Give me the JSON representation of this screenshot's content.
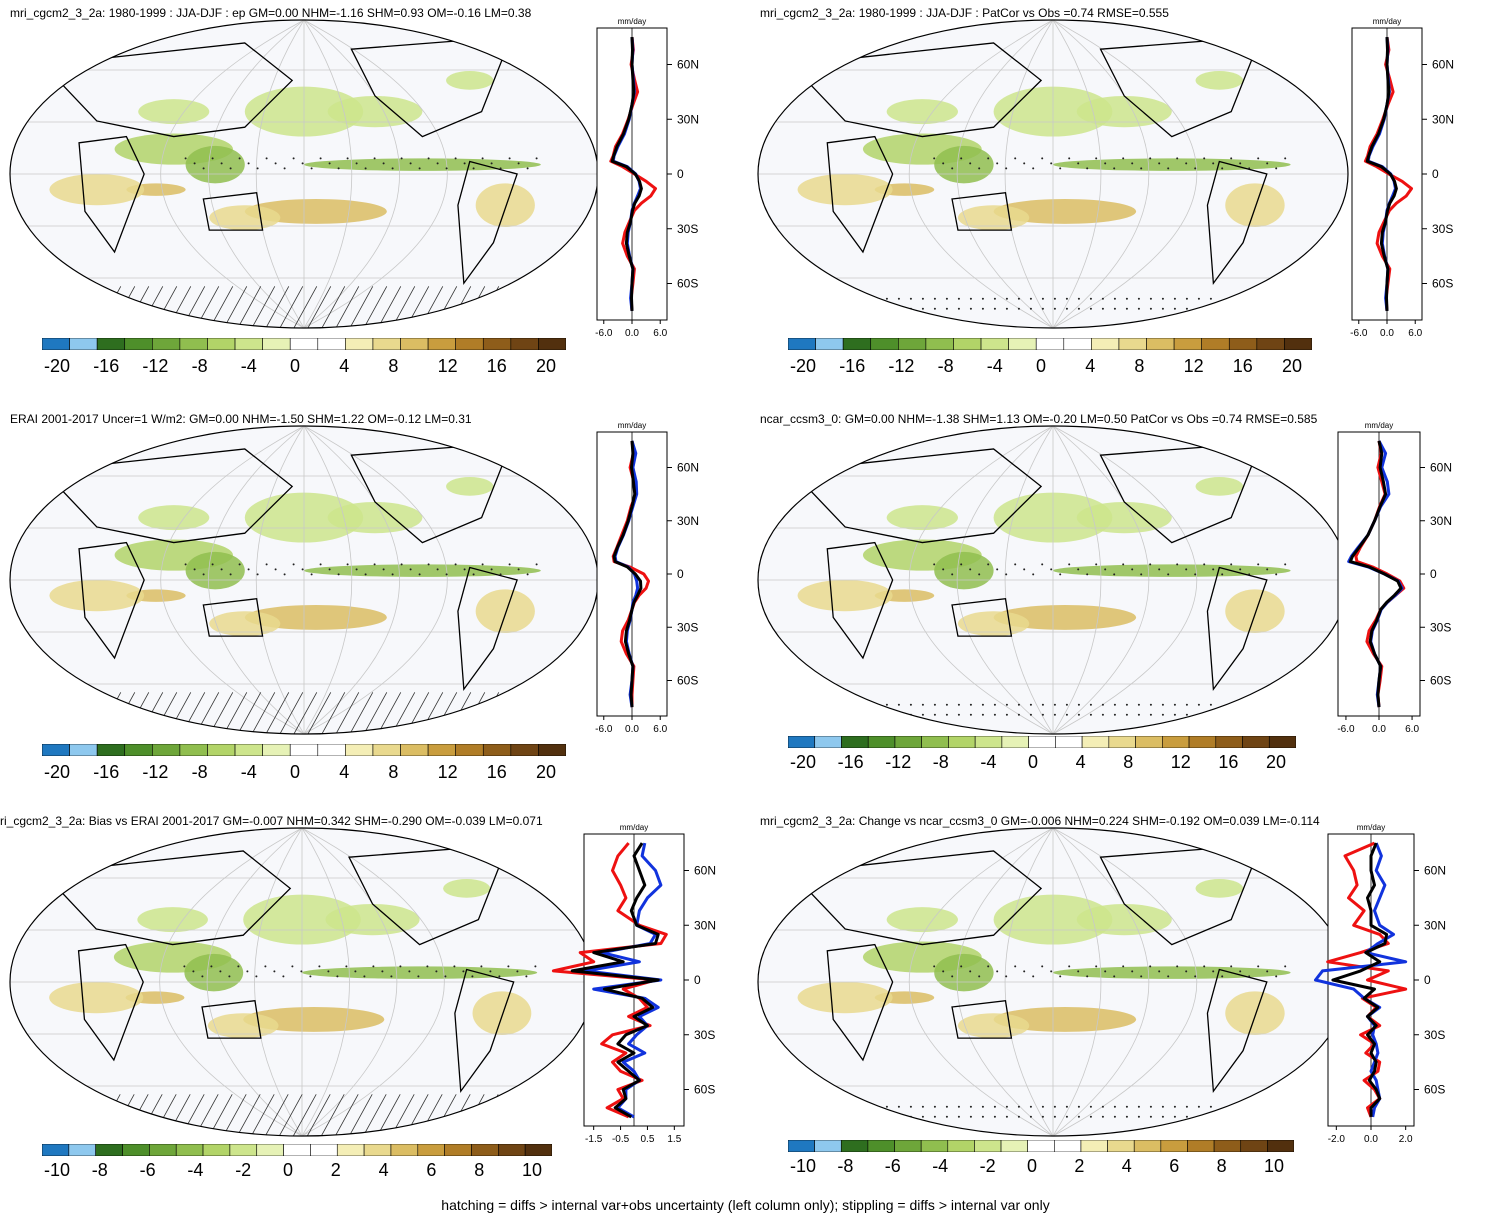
{
  "footer": "hatching = diffs > internal var+obs uncertainty (left column only); stippling = diffs > internal var only",
  "colors": {
    "scale_main": [
      "#1f78c0",
      "#8ec8ee",
      "#2e6e1f",
      "#4e8f2a",
      "#6ea63a",
      "#90be4f",
      "#b2d468",
      "#cde58c",
      "#e6f2b6",
      "#ffffff",
      "#ffffff",
      "#f4eeb6",
      "#e9d98e",
      "#dbbd63",
      "#c99d3e",
      "#b07d27",
      "#8e5d1a",
      "#6f4414",
      "#52300e"
    ],
    "red": "#ee1111",
    "blue": "#1133dd",
    "black": "#000000"
  },
  "profile_axis": {
    "unit_label": "mm/day",
    "lat_ticks": [
      "60N",
      "30N",
      "0",
      "30S",
      "60S"
    ]
  },
  "panels": [
    {
      "id": "mri-mean",
      "title": "mri_cgcm2_3_2a: 1980-1999 : JJA-DJF : ep GM=0.00 NHM=-1.16 SHM=0.93 OM=-0.16 LM=0.38",
      "colorbar_labels": [
        "-20",
        "-16",
        "-12",
        "-8",
        "-4",
        "0",
        "4",
        "8",
        "12",
        "16",
        "20"
      ],
      "xticks": [
        "-6.0",
        "0.0",
        "6.0"
      ],
      "antarctic_pattern": "hatch"
    },
    {
      "id": "mri-patcor",
      "title": "mri_cgcm2_3_2a: 1980-1999 : JJA-DJF : PatCor vs Obs =0.74 RMSE=0.555",
      "colorbar_labels": [
        "-20",
        "-16",
        "-12",
        "-8",
        "-4",
        "0",
        "4",
        "8",
        "12",
        "16",
        "20"
      ],
      "xticks": [
        "-6.0",
        "0.0",
        "6.0"
      ],
      "antarctic_pattern": "stipple"
    },
    {
      "id": "erai",
      "title": "ERAI 2001-2017 Uncer=1 W/m2: GM=0.00 NHM=-1.50 SHM=1.22 OM=-0.12 LM=0.31",
      "colorbar_labels": [
        "-20",
        "-16",
        "-12",
        "-8",
        "-4",
        "0",
        "4",
        "8",
        "12",
        "16",
        "20"
      ],
      "xticks": [
        "-6.0",
        "0.0",
        "6.0"
      ],
      "antarctic_pattern": "hatch"
    },
    {
      "id": "ncar",
      "title": "ncar_ccsm3_0: GM=0.00 NHM=-1.38 SHM=1.13 OM=-0.20 LM=0.50 PatCor vs Obs =0.74 RMSE=0.585",
      "colorbar_labels": [
        "-20",
        "-16",
        "-12",
        "-8",
        "-4",
        "0",
        "4",
        "8",
        "12",
        "16",
        "20"
      ],
      "xticks": [
        "-6.0",
        "0.0",
        "6.0"
      ],
      "antarctic_pattern": "stipple"
    },
    {
      "id": "bias",
      "title": "ri_cgcm2_3_2a: Bias vs ERAI 2001-2017 GM=-0.007 NHM=0.342 SHM=-0.290 OM=-0.039 LM=0.071",
      "colorbar_labels": [
        "-10",
        "-8",
        "-6",
        "-4",
        "-2",
        "0",
        "2",
        "4",
        "6",
        "8",
        "10"
      ],
      "xticks": [
        "-1.5",
        "-0.5",
        "0.5",
        "1.5"
      ],
      "antarctic_pattern": "hatch"
    },
    {
      "id": "change",
      "title": "mri_cgcm2_3_2a: Change vs ncar_ccsm3_0 GM=-0.006 NHM=0.224 SHM=-0.192 OM=0.039 LM=-0.114",
      "colorbar_labels": [
        "-10",
        "-8",
        "-6",
        "-4",
        "-2",
        "0",
        "2",
        "4",
        "6",
        "8",
        "10"
      ],
      "xticks": [
        "-2.0",
        "0.0",
        "2.0"
      ],
      "antarctic_pattern": "stipple"
    }
  ],
  "chart_data": [
    {
      "type": "line",
      "panel": "mri-mean",
      "y_lat": [
        75,
        68,
        60,
        52,
        45,
        38,
        30,
        22,
        15,
        10,
        7,
        4,
        0,
        -4,
        -8,
        -12,
        -16,
        -20,
        -26,
        -32,
        -38,
        -45,
        -52,
        -60,
        -68,
        -75
      ],
      "series": [
        {
          "color": "red",
          "values": [
            0,
            0.3,
            -0.2,
            0.5,
            1.2,
            0.2,
            -0.8,
            -2.0,
            -3.5,
            -4.0,
            -4.5,
            -2.0,
            0.5,
            3.0,
            5.0,
            4.0,
            2.0,
            0.5,
            -0.5,
            -1.5,
            -2.0,
            -1.0,
            0.5,
            0.2,
            -0.2,
            0
          ]
        },
        {
          "color": "blue",
          "values": [
            0,
            0.2,
            0,
            0.3,
            0.5,
            0,
            -0.6,
            -1.6,
            -3.0,
            -3.8,
            -4.0,
            -1.0,
            0.8,
            1.5,
            1.8,
            1.2,
            0.5,
            0,
            -0.3,
            -0.8,
            -1.0,
            -0.5,
            0.2,
            0,
            -0.3,
            0
          ]
        },
        {
          "color": "black",
          "values": [
            0,
            0.1,
            0,
            0.2,
            0.4,
            0,
            -0.7,
            -1.8,
            -3.2,
            -3.9,
            -4.2,
            -1.2,
            0.7,
            1.6,
            2.0,
            1.5,
            0.6,
            0.1,
            -0.3,
            -1.0,
            -1.2,
            -0.6,
            0.2,
            0,
            -0.1,
            0
          ]
        }
      ]
    },
    {
      "type": "line",
      "panel": "mri-patcor",
      "y_lat": [
        75,
        68,
        60,
        52,
        45,
        38,
        30,
        22,
        15,
        10,
        7,
        4,
        0,
        -4,
        -8,
        -12,
        -16,
        -20,
        -26,
        -32,
        -38,
        -45,
        -52,
        -60,
        -68,
        -75
      ],
      "series": [
        {
          "color": "red",
          "values": [
            0,
            0.4,
            -0.3,
            0.6,
            1.3,
            0.2,
            -0.9,
            -2.1,
            -3.6,
            -4.1,
            -4.6,
            -2.2,
            0.4,
            3.2,
            5.2,
            4.1,
            2.0,
            0.5,
            -0.6,
            -1.7,
            -2.1,
            -1.0,
            0.6,
            0.2,
            -0.2,
            0
          ]
        },
        {
          "color": "blue",
          "values": [
            0,
            0.2,
            0,
            0.3,
            0.5,
            0,
            -0.6,
            -1.6,
            -3.0,
            -3.8,
            -4.0,
            -1.0,
            0.8,
            1.5,
            1.8,
            1.2,
            0.5,
            0,
            -0.3,
            -0.8,
            -1.0,
            -0.5,
            0.2,
            0,
            -0.3,
            0
          ]
        },
        {
          "color": "black",
          "values": [
            0,
            0.1,
            0,
            0.2,
            0.4,
            0,
            -0.7,
            -1.8,
            -3.2,
            -3.9,
            -4.2,
            -1.2,
            0.7,
            1.6,
            2.0,
            1.5,
            0.6,
            0.1,
            -0.3,
            -1.0,
            -1.2,
            -0.6,
            0.2,
            0,
            -0.1,
            0
          ]
        }
      ]
    },
    {
      "type": "line",
      "panel": "erai",
      "y_lat": [
        75,
        68,
        60,
        52,
        45,
        38,
        30,
        22,
        15,
        10,
        7,
        4,
        0,
        -4,
        -8,
        -12,
        -16,
        -20,
        -26,
        -32,
        -38,
        -45,
        -52,
        -60,
        -68,
        -75
      ],
      "series": [
        {
          "color": "red",
          "values": [
            0,
            0.3,
            -0.4,
            0.4,
            0.8,
            -0.2,
            -1.0,
            -2.2,
            -3.2,
            -4.0,
            -3.8,
            -0.5,
            2.5,
            3.5,
            3.0,
            1.5,
            0.5,
            0,
            -0.8,
            -2.0,
            -2.3,
            -1.2,
            0.4,
            0.2,
            0,
            0
          ]
        },
        {
          "color": "blue",
          "values": [
            0,
            0.8,
            0.2,
            0.9,
            1.0,
            0.2,
            -0.7,
            -1.8,
            -3.0,
            -3.6,
            -3.4,
            -0.8,
            0.5,
            1.0,
            1.2,
            0.8,
            0.2,
            0,
            -0.4,
            -1.0,
            -1.2,
            -0.6,
            0.2,
            0,
            -0.4,
            0
          ]
        },
        {
          "color": "black",
          "values": [
            0,
            0.2,
            -0.1,
            0.3,
            0.6,
            0,
            -0.8,
            -1.9,
            -3.1,
            -3.8,
            -3.6,
            -1.0,
            0.7,
            1.8,
            1.9,
            1.2,
            0.4,
            0,
            -0.5,
            -1.2,
            -1.4,
            -0.7,
            0.2,
            0,
            -0.2,
            0
          ]
        }
      ]
    },
    {
      "type": "line",
      "panel": "ncar",
      "y_lat": [
        75,
        68,
        60,
        52,
        45,
        38,
        30,
        22,
        15,
        10,
        7,
        4,
        0,
        -4,
        -8,
        -12,
        -16,
        -20,
        -26,
        -32,
        -38,
        -45,
        -52,
        -60,
        -68,
        -75
      ],
      "series": [
        {
          "color": "red",
          "values": [
            0,
            0.4,
            -0.2,
            0.5,
            1.1,
            0.1,
            -0.8,
            -2.0,
            -3.4,
            -4.2,
            -4.0,
            -1.2,
            1.5,
            3.8,
            4.5,
            3.0,
            1.5,
            0.3,
            -0.6,
            -1.8,
            -2.2,
            -1.0,
            0.5,
            0.2,
            -0.2,
            0
          ]
        },
        {
          "color": "blue",
          "values": [
            0,
            1.2,
            0.5,
            1.5,
            1.8,
            0.3,
            -0.8,
            -2.0,
            -3.8,
            -5.0,
            -5.5,
            -2.0,
            1.0,
            3.5,
            4.2,
            3.0,
            1.5,
            0.4,
            -0.3,
            -1.2,
            -1.5,
            -0.8,
            0.3,
            0,
            -0.3,
            0
          ]
        },
        {
          "color": "black",
          "values": [
            0,
            0.5,
            0.2,
            0.8,
            1.2,
            0.2,
            -0.8,
            -2.0,
            -3.6,
            -4.8,
            -5.2,
            -1.8,
            1.0,
            3.4,
            4.0,
            2.8,
            1.4,
            0.3,
            -0.4,
            -1.3,
            -1.6,
            -0.8,
            0.3,
            0,
            -0.2,
            0
          ]
        }
      ]
    },
    {
      "type": "line",
      "panel": "bias",
      "y_lat": [
        75,
        68,
        60,
        52,
        45,
        38,
        30,
        25,
        20,
        15,
        10,
        5,
        0,
        -5,
        -10,
        -15,
        -20,
        -25,
        -30,
        -35,
        -40,
        -45,
        -50,
        -55,
        -60,
        -65,
        -70,
        -75
      ],
      "series": [
        {
          "color": "red",
          "values": [
            -0.2,
            -0.6,
            -0.8,
            -0.5,
            -0.3,
            -0.6,
            0.2,
            1.2,
            1.0,
            -2.0,
            -1.5,
            -3.0,
            0.8,
            -0.4,
            0.2,
            0.5,
            -0.2,
            0.6,
            -0.8,
            -1.2,
            -0.3,
            -0.8,
            -0.5,
            0.3,
            -0.6,
            -0.4,
            -1.0,
            -0.2
          ]
        },
        {
          "color": "blue",
          "values": [
            0.4,
            0.3,
            0.8,
            1.0,
            0.5,
            0.2,
            0.1,
            0.8,
            0.6,
            -1.2,
            0.2,
            -1.8,
            1.0,
            -1.5,
            0.4,
            0.9,
            0.2,
            0.5,
            0.1,
            -0.2,
            0.4,
            -0.4,
            0,
            0.2,
            -0.3,
            -0.3,
            -0.6,
            0
          ]
        },
        {
          "color": "black",
          "values": [
            0.3,
            0,
            0.2,
            0.4,
            0.1,
            -0.1,
            0.1,
            0.9,
            0.8,
            -1.5,
            -0.4,
            -2.3,
            0.9,
            -1.1,
            0.3,
            0.7,
            0,
            0.5,
            -0.3,
            -0.6,
            0,
            -0.6,
            -0.2,
            0.2,
            -0.4,
            -0.3,
            -0.7,
            -0.1
          ]
        }
      ]
    },
    {
      "type": "line",
      "panel": "change",
      "y_lat": [
        75,
        68,
        60,
        52,
        45,
        38,
        30,
        25,
        20,
        15,
        10,
        5,
        0,
        -5,
        -10,
        -15,
        -20,
        -25,
        -30,
        -35,
        -40,
        -45,
        -50,
        -55,
        -60,
        -65,
        -70,
        -75
      ],
      "series": [
        {
          "color": "red",
          "values": [
            0.2,
            -1.5,
            -1.0,
            -0.8,
            -1.3,
            -0.4,
            -1.0,
            0.5,
            1.0,
            -0.6,
            -2.5,
            1.0,
            -0.2,
            2.0,
            -0.5,
            0.3,
            -0.2,
            0.5,
            -0.6,
            0.2,
            -0.3,
            0.5,
            0.4,
            -0.4,
            0.2,
            0.5,
            -0.2,
            0
          ]
        },
        {
          "color": "blue",
          "values": [
            0.3,
            0.6,
            0.3,
            0.8,
            0.5,
            0.2,
            0.5,
            1.3,
            0.4,
            -0.3,
            2.0,
            -2.8,
            -3.2,
            -1.0,
            -0.4,
            0.5,
            -0.2,
            0.2,
            0.1,
            0.3,
            0.4,
            0.2,
            0,
            0.3,
            0.4,
            0.5,
            0.2,
            0.1
          ]
        },
        {
          "color": "black",
          "values": [
            0.3,
            0,
            0,
            0.2,
            -0.2,
            0,
            0,
            0.9,
            0.8,
            -0.3,
            0.5,
            -0.6,
            -2.2,
            0.2,
            -0.4,
            0.4,
            -0.2,
            0.3,
            -0.2,
            0.2,
            0,
            0.3,
            0.2,
            -0.1,
            0.3,
            0.5,
            0,
            0
          ]
        }
      ]
    }
  ]
}
